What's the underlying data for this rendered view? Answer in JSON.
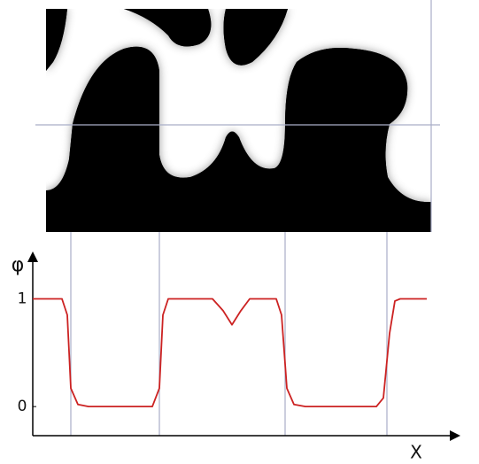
{
  "chart_data": {
    "type": "line",
    "y_label": "φ",
    "x_label": "X",
    "x": [
      0,
      33,
      39,
      43,
      51,
      63,
      135,
      143,
      147,
      153,
      203,
      215,
      225,
      235,
      245,
      275,
      281,
      287,
      295,
      308,
      388,
      396,
      403,
      409,
      415,
      445
    ],
    "series": [
      {
        "color": "#cc2222",
        "values": [
          1,
          1,
          0.85,
          0.17,
          0.02,
          0,
          0,
          0.17,
          0.85,
          1,
          1,
          0.89,
          0.76,
          0.89,
          1,
          1,
          0.85,
          0.17,
          0.02,
          0,
          0,
          0.08,
          0.68,
          0.98,
          1,
          1
        ]
      }
    ],
    "xlim": [
      0,
      483
    ],
    "ylim": [
      -0.27,
      1.44
    ],
    "yticks": [
      0,
      1
    ]
  }
}
